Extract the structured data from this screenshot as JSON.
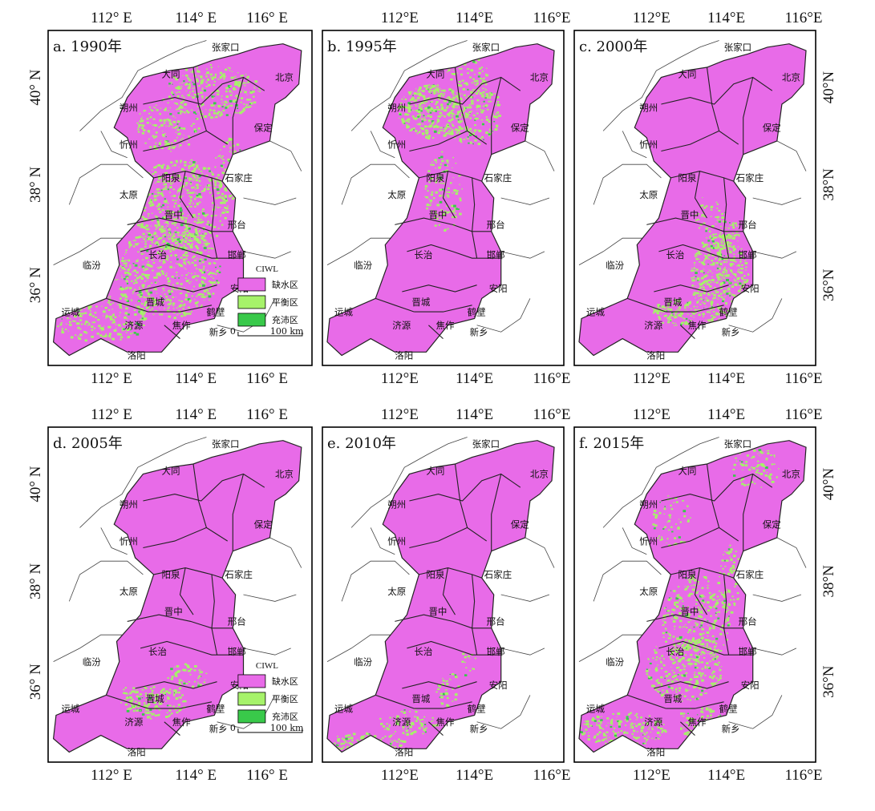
{
  "figure": {
    "panels": [
      {
        "id": "a",
        "title": "a. 1990年",
        "top_lon_labels": [
          "112° E",
          "114° E",
          "116° E"
        ],
        "bottom_lon_labels": [
          "112° E",
          "114° E",
          "116° E"
        ],
        "lat_labels": [
          "40° N",
          "38° N",
          "36° N"
        ],
        "lat_side": "left",
        "pattern": "mixed_heavy",
        "has_legend": true
      },
      {
        "id": "b",
        "title": "b. 1995年",
        "top_lon_labels": [
          "112°E",
          "114°E",
          "116°E"
        ],
        "bottom_lon_labels": [
          "112°E",
          "114°E",
          "116°E"
        ],
        "lat_labels": [],
        "lat_side": "none",
        "pattern": "north_balance",
        "has_legend": false
      },
      {
        "id": "c",
        "title": "c. 2000年",
        "top_lon_labels": [
          "112°E",
          "114°E",
          "116°E"
        ],
        "bottom_lon_labels": [
          "112°E",
          "114°E",
          "116°E"
        ],
        "lat_labels": [
          "40°N",
          "38°N",
          "36°N"
        ],
        "lat_side": "right",
        "pattern": "south_balance",
        "has_legend": false
      },
      {
        "id": "d",
        "title": "d. 2005年",
        "top_lon_labels": [
          "112° E",
          "114° E",
          "116° E"
        ],
        "bottom_lon_labels": [
          "112° E",
          "114° E",
          "116° E"
        ],
        "lat_labels": [
          "40° N",
          "38° N",
          "36° N"
        ],
        "lat_side": "left",
        "pattern": "jincheng_balance",
        "has_legend": true
      },
      {
        "id": "e",
        "title": "e. 2010年",
        "top_lon_labels": [
          "112°E",
          "114°E",
          "116°E"
        ],
        "bottom_lon_labels": [
          "112°E",
          "114°E",
          "116°E"
        ],
        "lat_labels": [],
        "lat_side": "none",
        "pattern": "southwest_balance",
        "has_legend": false
      },
      {
        "id": "f",
        "title": "f. 2015年",
        "top_lon_labels": [
          "112°E",
          "114°E",
          "116°E"
        ],
        "bottom_lon_labels": [
          "112°E",
          "114°E",
          "116°E"
        ],
        "lat_labels": [
          "40°N",
          "38°N",
          "36°N"
        ],
        "lat_side": "right",
        "pattern": "mixed_moderate",
        "has_legend": false
      }
    ],
    "cities": [
      "张家口",
      "大同",
      "北京",
      "朔州",
      "保定",
      "忻州",
      "阳泉",
      "石家庄",
      "太原",
      "晋中",
      "邢台",
      "长治",
      "邯郸",
      "临汾",
      "安阳",
      "晋城",
      "鹤壁",
      "运城",
      "济源",
      "焦作",
      "新乡",
      "洛阳"
    ],
    "legend": {
      "title": "CIWL",
      "items": [
        {
          "label": "缺水区",
          "color": "#e86be8"
        },
        {
          "label": "平衡区",
          "color": "#a6f26a"
        },
        {
          "label": "充沛区",
          "color": "#39c94a"
        }
      ],
      "scale_start": "0",
      "scale_end": "100 km"
    },
    "colors": {
      "deficit": "#e86be8",
      "balance": "#a6f26a",
      "abundant": "#39c94a",
      "boundary": "#222222",
      "frame": "#000000"
    }
  }
}
